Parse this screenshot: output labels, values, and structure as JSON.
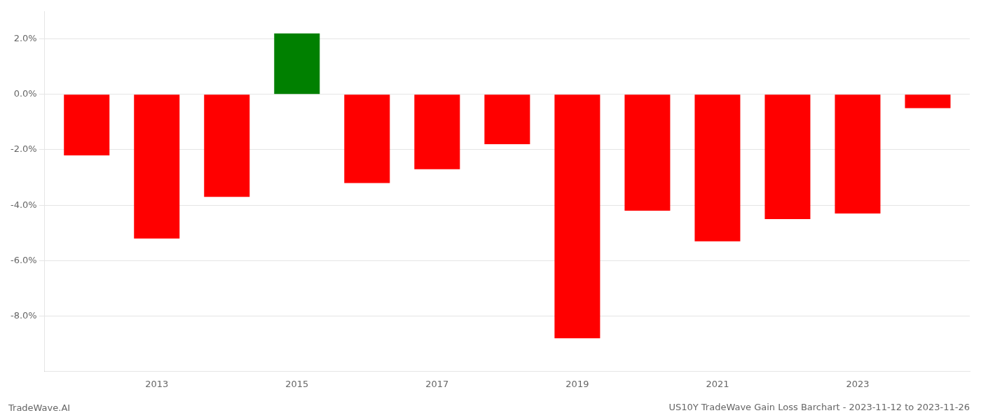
{
  "chart_data": {
    "type": "bar",
    "title": "US10Y TradeWave Gain Loss Barchart - 2023-11-12 to 2023-11-26",
    "annotations": [
      "TradeWave.AI"
    ],
    "x": [
      2012,
      2013,
      2014,
      2016,
      2017,
      2018,
      2019,
      2020,
      2021,
      2022,
      2023,
      2024,
      2015
    ],
    "values": [
      -2.2,
      -5.2,
      -3.7,
      -3.2,
      -2.7,
      -1.8,
      -8.8,
      -4.2,
      -5.3,
      -4.5,
      -4.3,
      -0.5,
      2.2
    ],
    "colors": [
      "#ff0000",
      "#ff0000",
      "#ff0000",
      "#ff0000",
      "#ff0000",
      "#ff0000",
      "#ff0000",
      "#ff0000",
      "#ff0000",
      "#ff0000",
      "#ff0000",
      "#ff0000",
      "#008000"
    ],
    "xlim": [
      2011.4,
      2024.6
    ],
    "xticks": [
      2013,
      2015,
      2017,
      2019,
      2021,
      2023
    ],
    "ylim": [
      -10.0,
      3.0
    ],
    "yticks": [
      {
        "value": 2.0,
        "label": "2.0%"
      },
      {
        "value": 0.0,
        "label": "0.0%"
      },
      {
        "value": -2.0,
        "label": "-2.0%"
      },
      {
        "value": -4.0,
        "label": "-4.0%"
      },
      {
        "value": -6.0,
        "label": "-6.0%"
      },
      {
        "value": -8.0,
        "label": "-8.0%"
      }
    ],
    "grid": true
  }
}
